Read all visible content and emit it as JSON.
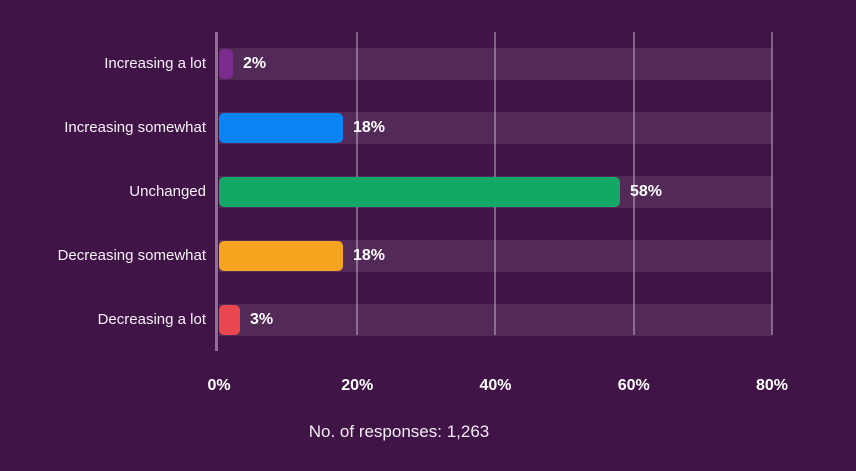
{
  "chart_data": {
    "type": "bar",
    "orientation": "horizontal",
    "title": "",
    "categories": [
      "Increasing a lot",
      "Increasing somewhat",
      "Unchanged",
      "Decreasing somewhat",
      "Decreasing a lot"
    ],
    "values": [
      2,
      18,
      58,
      18,
      3
    ],
    "value_labels": [
      "2%",
      "18%",
      "58%",
      "18%",
      "3%"
    ],
    "bar_colors": [
      "#7C2B8F",
      "#0A84F4",
      "#13A865",
      "#F5A41F",
      "#E8474F"
    ],
    "x_ticks": [
      "0%",
      "20%",
      "40%",
      "60%",
      "80%"
    ],
    "xlim": [
      0,
      80
    ],
    "grid": true,
    "legend": false,
    "caption": "No. of responses: 1,263",
    "colors": {
      "background": "#411447",
      "row_band": "rgba(255,255,255,0.09)",
      "gridline": "rgba(255,255,255,0.33)",
      "text": "#FFFFFF"
    }
  }
}
